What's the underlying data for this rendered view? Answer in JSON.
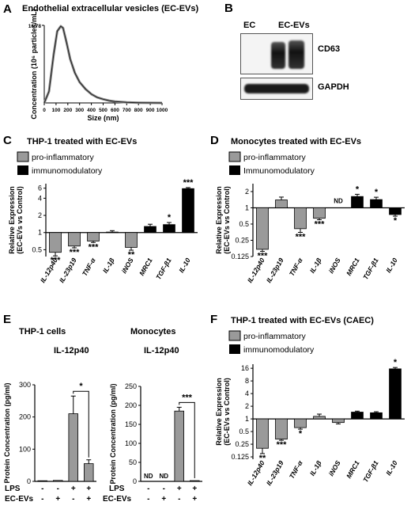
{
  "panels": {
    "a": {
      "letter": "A",
      "title": "Endothelial extracellular vesicles (EC-EVs)"
    },
    "b": {
      "letter": "B",
      "lanes": [
        "EC",
        "EC-EVs"
      ],
      "bands": [
        "CD63",
        "GAPDH"
      ]
    },
    "c": {
      "letter": "C",
      "title": "THP-1 treated with EC-EVs"
    },
    "d": {
      "letter": "D",
      "title": "Monocytes treated with EC-EVs",
      "nd": "ND"
    },
    "e": {
      "letter": "E",
      "title_left": "THP-1 cells",
      "title_right": "Monocytes",
      "sub_left": "IL-12p40",
      "sub_right": "IL-12p40",
      "row1": "LPS",
      "row2": "EC-EVs",
      "signs_lps": [
        "-",
        "-",
        "+",
        "+"
      ],
      "signs_evs": [
        "-",
        "+",
        "-",
        "+"
      ],
      "nd": "ND"
    },
    "f": {
      "letter": "F",
      "title": "THP-1 treated with EC-EVs (CAEC)"
    }
  },
  "legend": {
    "pro": "pro-inflammatory",
    "immuno_c": "immunomodulatory",
    "immuno_d": "Immunomodulatory",
    "immuno_f": "immunomodulatory",
    "pro_color": "#9a9a9a",
    "immuno_color": "#000000"
  },
  "chart_data": [
    {
      "id": "A",
      "type": "line",
      "title": "Endothelial extracellular vesicles (EC-EVs)",
      "xlabel": "Size (nm)",
      "ylabel": "Concentration (10⁶ particles/mL)",
      "xlim": [
        0,
        1000
      ],
      "ylim": [
        0,
        16.78
      ],
      "xticks": [
        "0",
        "100",
        "200",
        "300",
        "400",
        "500",
        "600",
        "700",
        "800",
        "900",
        "1000"
      ],
      "yticks": [
        "16.78"
      ],
      "x": [
        0,
        40,
        80,
        110,
        140,
        160,
        190,
        220,
        260,
        300,
        350,
        400,
        450,
        500,
        550,
        600,
        700,
        800,
        900,
        1000
      ],
      "y": [
        0,
        2.5,
        10.5,
        15.5,
        16.6,
        16.2,
        13.0,
        9.5,
        6.5,
        4.5,
        3.0,
        1.9,
        1.2,
        0.8,
        0.5,
        0.3,
        0.12,
        0.05,
        0.02,
        0
      ]
    },
    {
      "id": "C",
      "type": "bar",
      "scale": "log",
      "title": "THP-1 treated with EC-EVs",
      "ylabel": "Relative Expression (EC-EVs vs Control)",
      "yticks": [
        "0.5",
        "1",
        "2",
        "4",
        "6"
      ],
      "ylim": [
        0.38,
        7.2
      ],
      "categories": [
        "IL-12p40",
        "IL-23p19",
        "TNF-α",
        "IL-1β",
        "iNOS",
        "MRC1",
        "TGF-β1",
        "IL-10"
      ],
      "values": [
        0.45,
        0.58,
        0.71,
        1.02,
        0.55,
        1.28,
        1.38,
        5.9
      ],
      "errors": [
        0.06,
        0.04,
        0.04,
        0.06,
        0.06,
        0.12,
        0.12,
        0.25
      ],
      "groups": [
        "pro",
        "pro",
        "pro",
        "pro",
        "pro",
        "immuno",
        "immuno",
        "immuno"
      ],
      "significance": [
        "***",
        "***",
        "***",
        "",
        "**",
        "",
        "*",
        "***"
      ]
    },
    {
      "id": "D",
      "type": "bar",
      "scale": "log",
      "title": "Monocytes treated with EC-EVs",
      "ylabel": "Relative Expression (EC-EVs vs Control)",
      "yticks": [
        "0.125",
        "0.25",
        "0.5",
        "1",
        "2"
      ],
      "ylim": [
        0.125,
        2.8
      ],
      "categories": [
        "IL-12p40",
        "IL-23p19",
        "TNF-α",
        "IL-1β",
        "iNOS",
        "MRC1",
        "TGF-β1",
        "IL-10"
      ],
      "values": [
        0.17,
        1.4,
        0.41,
        0.64,
        null,
        1.62,
        1.42,
        0.75
      ],
      "errors": [
        0.015,
        0.18,
        0.06,
        0.04,
        null,
        0.16,
        0.15,
        0.05
      ],
      "groups": [
        "pro",
        "pro",
        "pro",
        "pro",
        "pro",
        "immuno",
        "immuno",
        "immuno"
      ],
      "significance": [
        "***",
        "",
        "***",
        "***",
        "ND",
        "*",
        "*",
        "*"
      ]
    },
    {
      "id": "E-left",
      "type": "bar",
      "title": "THP-1 cells",
      "subtitle": "IL-12p40",
      "ylabel": "Protein Concentration (pg/ml)",
      "ylim": [
        0,
        300
      ],
      "yticks": [
        "0",
        "100",
        "200",
        "300"
      ],
      "values": [
        2,
        3,
        210,
        55
      ],
      "errors": [
        0,
        0,
        55,
        12
      ],
      "significance_pair": [
        2,
        3
      ],
      "significance": "*"
    },
    {
      "id": "E-right",
      "type": "bar",
      "title": "Monocytes",
      "subtitle": "IL-12p40",
      "ylabel": "Protein Concentration (pg/ml)",
      "ylim": [
        0,
        250
      ],
      "yticks": [
        "0",
        "50",
        "100",
        "150",
        "200",
        "250"
      ],
      "values": [
        null,
        null,
        185,
        2
      ],
      "errors": [
        null,
        null,
        10,
        0
      ],
      "labels": [
        "ND",
        "ND",
        "",
        ""
      ],
      "significance_pair": [
        2,
        3
      ],
      "significance": "***"
    },
    {
      "id": "F",
      "type": "bar",
      "scale": "log",
      "title": "THP-1 treated with EC-EVs (CAEC)",
      "ylabel": "Relative Expression (EC-EVs vs Control)",
      "yticks": [
        "0.125",
        "0.25",
        "0.5",
        "1",
        "2",
        "4",
        "8",
        "16"
      ],
      "ylim": [
        0.11,
        20
      ],
      "categories": [
        "IL-12p40",
        "IL-23p19",
        "TNF-α",
        "IL-1β",
        "iNOS",
        "MRC1",
        "TGF-β1",
        "IL-10"
      ],
      "values": [
        0.2,
        0.33,
        0.62,
        1.15,
        0.82,
        1.45,
        1.4,
        15.5
      ],
      "errors": [
        0.05,
        0.02,
        0.05,
        0.15,
        0.06,
        0.08,
        0.08,
        1.2
      ],
      "groups": [
        "pro",
        "pro",
        "pro",
        "pro",
        "pro",
        "immuno",
        "immuno",
        "immuno"
      ],
      "significance": [
        "**",
        "***",
        "*",
        "",
        "",
        "",
        "",
        "*"
      ]
    }
  ]
}
